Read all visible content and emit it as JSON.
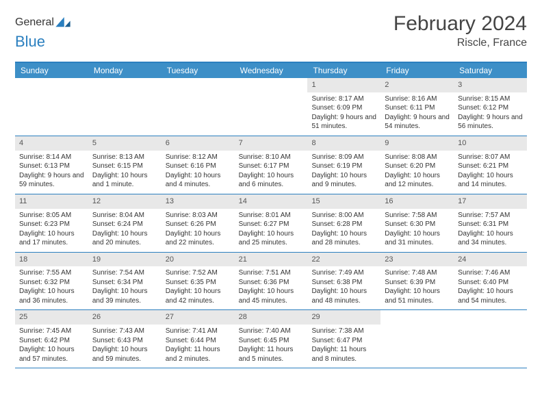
{
  "logo": {
    "word1": "General",
    "word2": "Blue",
    "accent": "#2a7fbf",
    "gray": "#6b6b6b"
  },
  "title": "February 2024",
  "location": "Riscle, France",
  "colors": {
    "header_border": "#2a7fbf",
    "dayheader_bg": "#3d8fc7",
    "dayheader_fg": "#ffffff",
    "daynum_bg": "#e8e8e8",
    "text": "#333333"
  },
  "day_names": [
    "Sunday",
    "Monday",
    "Tuesday",
    "Wednesday",
    "Thursday",
    "Friday",
    "Saturday"
  ],
  "weeks": [
    [
      {
        "empty": true
      },
      {
        "empty": true
      },
      {
        "empty": true
      },
      {
        "empty": true
      },
      {
        "n": "1",
        "sunrise": "8:17 AM",
        "sunset": "6:09 PM",
        "daylight": "9 hours and 51 minutes."
      },
      {
        "n": "2",
        "sunrise": "8:16 AM",
        "sunset": "6:11 PM",
        "daylight": "9 hours and 54 minutes."
      },
      {
        "n": "3",
        "sunrise": "8:15 AM",
        "sunset": "6:12 PM",
        "daylight": "9 hours and 56 minutes."
      }
    ],
    [
      {
        "n": "4",
        "sunrise": "8:14 AM",
        "sunset": "6:13 PM",
        "daylight": "9 hours and 59 minutes."
      },
      {
        "n": "5",
        "sunrise": "8:13 AM",
        "sunset": "6:15 PM",
        "daylight": "10 hours and 1 minute."
      },
      {
        "n": "6",
        "sunrise": "8:12 AM",
        "sunset": "6:16 PM",
        "daylight": "10 hours and 4 minutes."
      },
      {
        "n": "7",
        "sunrise": "8:10 AM",
        "sunset": "6:17 PM",
        "daylight": "10 hours and 6 minutes."
      },
      {
        "n": "8",
        "sunrise": "8:09 AM",
        "sunset": "6:19 PM",
        "daylight": "10 hours and 9 minutes."
      },
      {
        "n": "9",
        "sunrise": "8:08 AM",
        "sunset": "6:20 PM",
        "daylight": "10 hours and 12 minutes."
      },
      {
        "n": "10",
        "sunrise": "8:07 AM",
        "sunset": "6:21 PM",
        "daylight": "10 hours and 14 minutes."
      }
    ],
    [
      {
        "n": "11",
        "sunrise": "8:05 AM",
        "sunset": "6:23 PM",
        "daylight": "10 hours and 17 minutes."
      },
      {
        "n": "12",
        "sunrise": "8:04 AM",
        "sunset": "6:24 PM",
        "daylight": "10 hours and 20 minutes."
      },
      {
        "n": "13",
        "sunrise": "8:03 AM",
        "sunset": "6:26 PM",
        "daylight": "10 hours and 22 minutes."
      },
      {
        "n": "14",
        "sunrise": "8:01 AM",
        "sunset": "6:27 PM",
        "daylight": "10 hours and 25 minutes."
      },
      {
        "n": "15",
        "sunrise": "8:00 AM",
        "sunset": "6:28 PM",
        "daylight": "10 hours and 28 minutes."
      },
      {
        "n": "16",
        "sunrise": "7:58 AM",
        "sunset": "6:30 PM",
        "daylight": "10 hours and 31 minutes."
      },
      {
        "n": "17",
        "sunrise": "7:57 AM",
        "sunset": "6:31 PM",
        "daylight": "10 hours and 34 minutes."
      }
    ],
    [
      {
        "n": "18",
        "sunrise": "7:55 AM",
        "sunset": "6:32 PM",
        "daylight": "10 hours and 36 minutes."
      },
      {
        "n": "19",
        "sunrise": "7:54 AM",
        "sunset": "6:34 PM",
        "daylight": "10 hours and 39 minutes."
      },
      {
        "n": "20",
        "sunrise": "7:52 AM",
        "sunset": "6:35 PM",
        "daylight": "10 hours and 42 minutes."
      },
      {
        "n": "21",
        "sunrise": "7:51 AM",
        "sunset": "6:36 PM",
        "daylight": "10 hours and 45 minutes."
      },
      {
        "n": "22",
        "sunrise": "7:49 AM",
        "sunset": "6:38 PM",
        "daylight": "10 hours and 48 minutes."
      },
      {
        "n": "23",
        "sunrise": "7:48 AM",
        "sunset": "6:39 PM",
        "daylight": "10 hours and 51 minutes."
      },
      {
        "n": "24",
        "sunrise": "7:46 AM",
        "sunset": "6:40 PM",
        "daylight": "10 hours and 54 minutes."
      }
    ],
    [
      {
        "n": "25",
        "sunrise": "7:45 AM",
        "sunset": "6:42 PM",
        "daylight": "10 hours and 57 minutes."
      },
      {
        "n": "26",
        "sunrise": "7:43 AM",
        "sunset": "6:43 PM",
        "daylight": "10 hours and 59 minutes."
      },
      {
        "n": "27",
        "sunrise": "7:41 AM",
        "sunset": "6:44 PM",
        "daylight": "11 hours and 2 minutes."
      },
      {
        "n": "28",
        "sunrise": "7:40 AM",
        "sunset": "6:45 PM",
        "daylight": "11 hours and 5 minutes."
      },
      {
        "n": "29",
        "sunrise": "7:38 AM",
        "sunset": "6:47 PM",
        "daylight": "11 hours and 8 minutes."
      },
      {
        "empty": true
      },
      {
        "empty": true
      }
    ]
  ],
  "labels": {
    "sunrise": "Sunrise:",
    "sunset": "Sunset:",
    "daylight": "Daylight:"
  }
}
